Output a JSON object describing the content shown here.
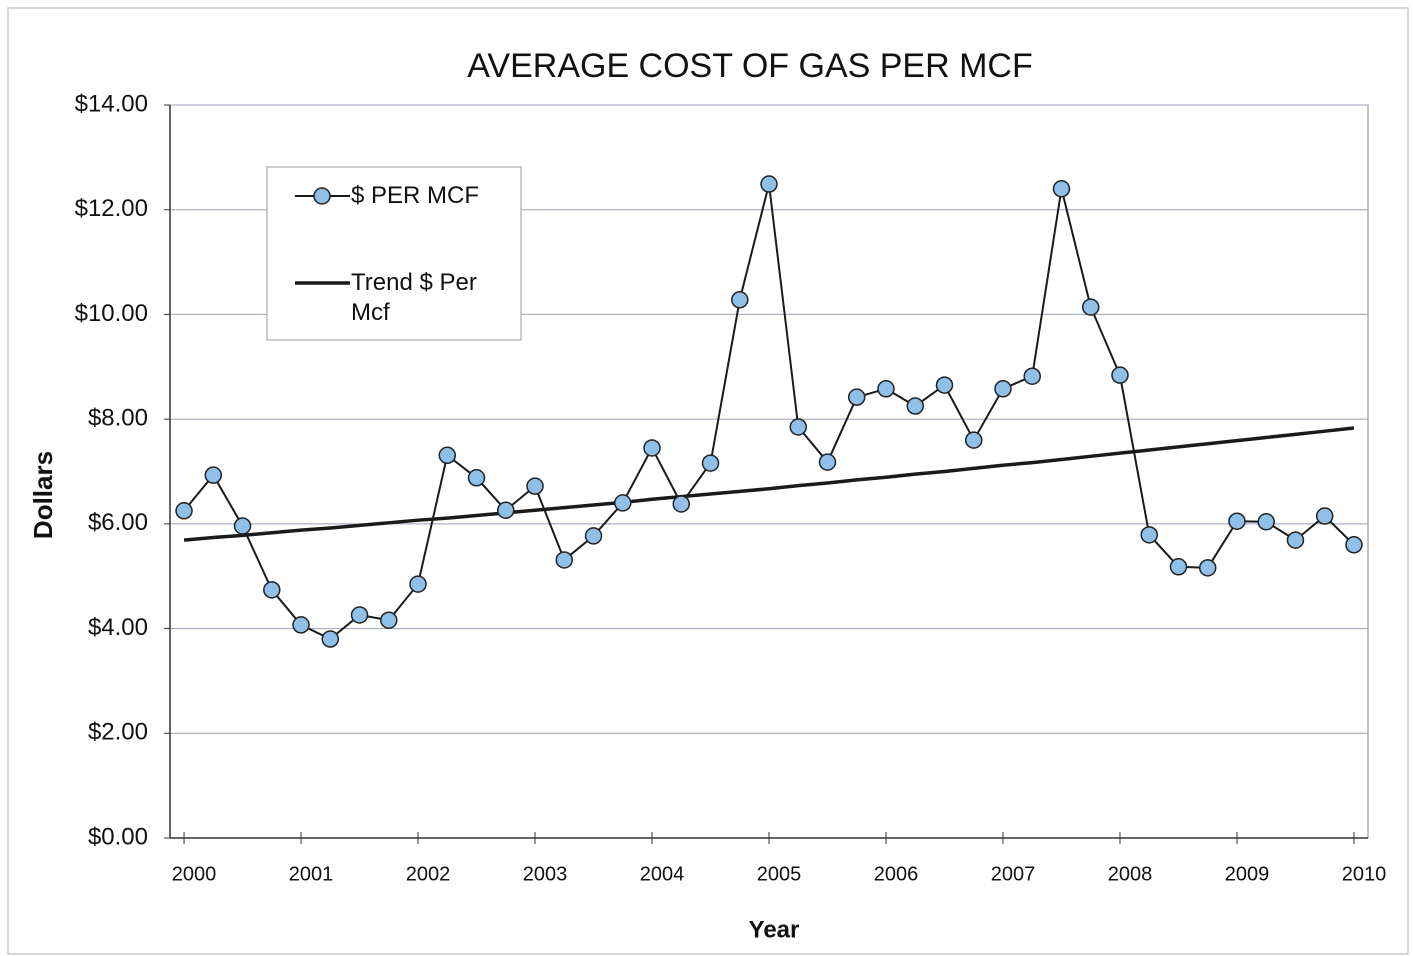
{
  "chart_data": {
    "type": "line",
    "title": "AVERAGE COST OF GAS PER MCF",
    "xlabel": "Year",
    "ylabel": "Dollars",
    "x": [
      2000,
      2000.25,
      2000.5,
      2000.75,
      2001,
      2001.25,
      2001.5,
      2001.75,
      2002,
      2002.25,
      2002.5,
      2002.75,
      2003,
      2003.25,
      2003.5,
      2003.75,
      2004,
      2004.25,
      2004.5,
      2004.75,
      2005,
      2005.25,
      2005.5,
      2005.75,
      2006,
      2006.25,
      2006.5,
      2006.75,
      2007,
      2007.25,
      2007.5,
      2007.75,
      2008,
      2008.25,
      2008.5,
      2008.75,
      2009,
      2009.25,
      2009.5,
      2009.75,
      2010
    ],
    "series": [
      {
        "name": "$ PER MCF",
        "color": "#8fc0ea",
        "line_color": "#1a1a1a",
        "markers": true,
        "values": [
          6.25,
          6.93,
          5.96,
          4.74,
          4.07,
          3.8,
          4.26,
          4.16,
          4.85,
          7.31,
          6.88,
          6.26,
          6.72,
          5.31,
          5.77,
          6.4,
          7.45,
          6.38,
          7.16,
          10.28,
          12.49,
          7.85,
          7.18,
          8.42,
          8.58,
          8.25,
          8.65,
          7.6,
          8.58,
          8.82,
          12.4,
          10.14,
          8.84,
          5.79,
          5.18,
          5.16,
          6.05,
          6.04,
          5.69,
          6.15,
          5.6
        ]
      },
      {
        "name": "Trend $ Per Mcf",
        "color": "#1a1a1a",
        "markers": false,
        "values": [
          5.69,
          5.74,
          5.78,
          5.83,
          5.88,
          5.92,
          5.97,
          6.02,
          6.07,
          6.11,
          6.16,
          6.21,
          6.26,
          6.31,
          6.36,
          6.41,
          6.47,
          6.52,
          6.57,
          6.62,
          6.67,
          6.73,
          6.78,
          6.84,
          6.89,
          6.95,
          7.0,
          7.06,
          7.12,
          7.17,
          7.23,
          7.29,
          7.35,
          7.41,
          7.47,
          7.53,
          7.59,
          7.65,
          7.71,
          7.77,
          7.83
        ]
      }
    ],
    "xlim": [
      1999.88,
      2010.12
    ],
    "xticks": [
      2000,
      2001,
      2002,
      2003,
      2004,
      2005,
      2006,
      2007,
      2008,
      2009,
      2010
    ],
    "ylim": [
      0,
      14
    ],
    "yticks": [
      {
        "value": 0,
        "label": "$0.00"
      },
      {
        "value": 2,
        "label": "$2.00"
      },
      {
        "value": 4,
        "label": "$4.00"
      },
      {
        "value": 6,
        "label": "$6.00"
      },
      {
        "value": 8,
        "label": "$8.00"
      },
      {
        "value": 10,
        "label": "$10.00"
      },
      {
        "value": 12,
        "label": "$12.00"
      },
      {
        "value": 14,
        "label": "$14.00"
      }
    ],
    "grid": true,
    "legend": "upper left"
  }
}
